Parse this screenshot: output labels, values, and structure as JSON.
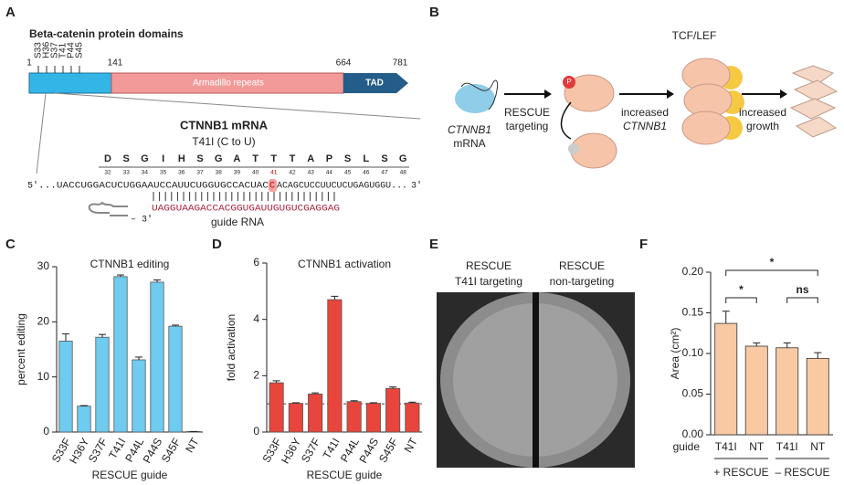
{
  "panel_a": {
    "letter": "A",
    "title": "Beta-catenin protein domains",
    "positions": [
      1,
      141,
      664,
      781
    ],
    "sites": [
      "S33",
      "H36",
      "S37",
      "T41",
      "P44",
      "S45"
    ],
    "domains": [
      "Armadillo repeats",
      "TAD"
    ],
    "mrna_title": "CTNNB1 mRNA",
    "mutation": "T41I (C to U)",
    "amino_acids": [
      "D",
      "S",
      "G",
      "I",
      "H",
      "S",
      "G",
      "A",
      "T",
      "T",
      "T",
      "A",
      "P",
      "S",
      "L",
      "S",
      "G"
    ],
    "codons": [
      32,
      33,
      34,
      35,
      36,
      37,
      38,
      39,
      40,
      41,
      42,
      43,
      44,
      45,
      46,
      47,
      48
    ],
    "five_prime": "5'",
    "sequence_left": "...UACCUGGACUCUGGAAUCCAUUCUGGUGCCACUAC",
    "sequence_edit": "C",
    "sequence_right": "ACAGCUCCUUCUCUGAGUGGU...",
    "three_prime": "3'",
    "guide_sequence": "UAGGUAAGACCACGGUGAUUGUGUCGAGGAG",
    "guide_end": "– 3'",
    "guide_label": "guide RNA"
  },
  "panel_b": {
    "letter": "B",
    "mrna": [
      "CTNNB1",
      "mRNA"
    ],
    "step1": [
      "RESCUE",
      "targeting"
    ],
    "phospho": "P",
    "step2": [
      "increased",
      "CTNNB1"
    ],
    "factor": "TCF/LEF",
    "step3": [
      "increased",
      "growth"
    ]
  },
  "panel_e": {
    "letter": "E",
    "left": [
      "RESCUE",
      "T41I targeting"
    ],
    "right": [
      "RESCUE",
      "non-targeting"
    ]
  },
  "chart_data": [
    {
      "type": "bar",
      "panel": "C",
      "title": "CTNNB1 editing",
      "y_label": "percent editing",
      "x_label": "RESCUE guide",
      "categories": [
        "S33F",
        "H36Y",
        "S37F",
        "T41I",
        "P44L",
        "P44S",
        "S45F",
        "NT"
      ],
      "values": [
        16.5,
        4.7,
        17.2,
        28.2,
        13.1,
        27.2,
        19.2,
        0.1
      ],
      "errors": [
        1.3,
        0.1,
        0.5,
        0.3,
        0.5,
        0.4,
        0.2,
        0
      ],
      "color": "#6fcbf0",
      "ylim": [
        0,
        30
      ],
      "yticks": [
        0,
        10,
        20,
        30
      ]
    },
    {
      "type": "bar",
      "panel": "D",
      "title": "CTNNB1 activation",
      "y_label": "fold activation",
      "x_label": "RESCUE guide",
      "categories": [
        "S33F",
        "H36Y",
        "S37F",
        "T41I",
        "P44L",
        "P44S",
        "S45F",
        "NT"
      ],
      "values": [
        1.75,
        1.02,
        1.35,
        4.7,
        1.08,
        1.02,
        1.55,
        1.03
      ],
      "errors": [
        0.07,
        0.02,
        0.04,
        0.12,
        0.03,
        0.02,
        0.05,
        0.03
      ],
      "color": "#e8453c",
      "reference_line": 1,
      "ylim": [
        0,
        6
      ],
      "yticks": [
        0,
        2,
        4,
        6
      ]
    },
    {
      "type": "bar",
      "panel": "F",
      "y_label": "Area (cm²)",
      "x_row_label": "guide",
      "categories": [
        "T41I",
        "NT",
        "T41I",
        "NT"
      ],
      "groups": [
        "+ RESCUE",
        "– RESCUE"
      ],
      "values": [
        0.137,
        0.109,
        0.107,
        0.094
      ],
      "errors": [
        0.015,
        0.004,
        0.006,
        0.007
      ],
      "color": "#f8c9a2",
      "annotations": [
        "*",
        "*",
        "ns"
      ],
      "ylim": [
        0,
        0.2
      ],
      "yticks": [
        {
          "value": 0,
          "label": "0.00"
        },
        {
          "value": 0.05,
          "label": "0.05"
        },
        {
          "value": 0.1,
          "label": "0.10"
        },
        {
          "value": 0.15,
          "label": "0.15"
        },
        {
          "value": 0.2,
          "label": "0.20"
        }
      ]
    }
  ]
}
